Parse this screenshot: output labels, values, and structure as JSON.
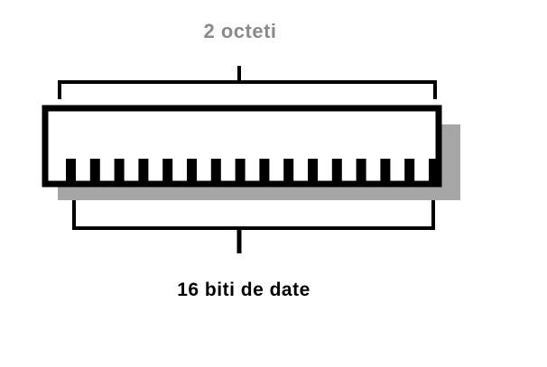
{
  "diagram": {
    "top_label": "2 octeti",
    "bottom_label": "16 biti de date",
    "pin_count": 16
  },
  "colors": {
    "top_label": "#8a8a8a",
    "bottom_label": "#000000",
    "outline": "#000000",
    "shadow": "#a6a6a6",
    "background": "#ffffff"
  }
}
